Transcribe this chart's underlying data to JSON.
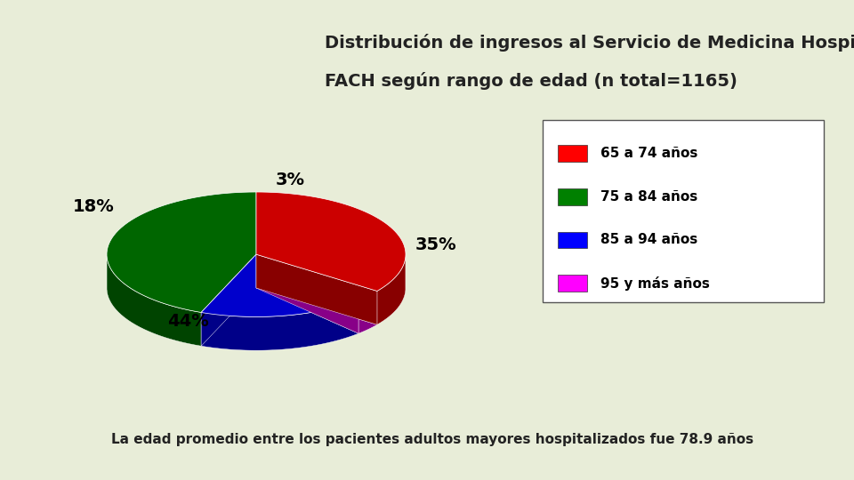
{
  "title_line1": "Distribución de ingresos al Servicio de Medicina Hospital",
  "title_line2": "FACH según rango de edad (n total=1165)",
  "subtitle": "La edad promedio entre los pacientes adultos mayores hospitalizados fue 78.9 años",
  "slices": [
    35,
    3,
    18,
    44
  ],
  "labels": [
    "65 a 74 años",
    "95 y más años",
    "85 a 94 años",
    "75 a 84 años"
  ],
  "colors": [
    "#CC0000",
    "#CC00CC",
    "#0000CC",
    "#006600"
  ],
  "dark_colors": [
    "#880000",
    "#880088",
    "#000088",
    "#004400"
  ],
  "pct_labels": [
    "35%",
    "3%",
    "18%",
    "44%"
  ],
  "background_color": "#E8EDD8",
  "title_fontsize": 14,
  "legend_fontsize": 11,
  "note_fontsize": 11,
  "legend_colors": [
    "#FF0000",
    "#008000",
    "#0000FF",
    "#FF00FF"
  ],
  "legend_labels": [
    "65 a 74 años",
    "75 a 84 años",
    "85 a 94 años",
    "95 y más años"
  ]
}
